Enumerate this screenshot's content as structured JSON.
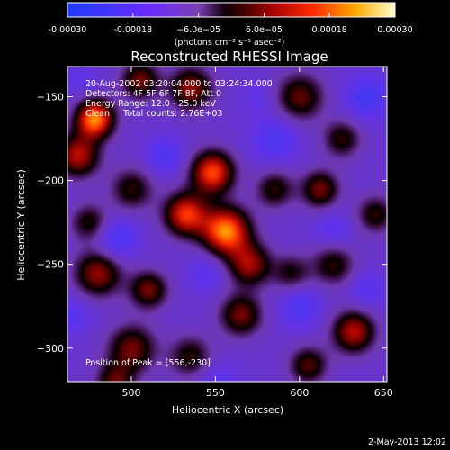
{
  "chart_data": {
    "type": "heatmap",
    "title": "Reconstructed RHESSI Image",
    "xlabel": "Heliocentric X (arcsec)",
    "ylabel": "Heliocentric Y (arcsec)",
    "xlim": [
      462,
      652
    ],
    "ylim": [
      -320,
      -132
    ],
    "xticks": [
      500,
      550,
      600,
      650
    ],
    "yticks": [
      -150,
      -200,
      -250,
      -300
    ],
    "colorbar": {
      "unit": "(photons cm⁻² s⁻¹ asec⁻²)",
      "range": [
        -0.0003,
        0.0003
      ],
      "tick_values": [
        -0.0003,
        -0.00018,
        -6e-05,
        6e-05,
        0.00018,
        0.0003
      ],
      "tick_labels": [
        "-0.00030",
        "-0.00018",
        "−6.0e−05",
        "6.0e−05",
        "0.00018",
        "0.00030"
      ]
    },
    "annotations": [
      "20-Aug-2002 03:20:04.000 to 03:24:34.000",
      "Detectors: 4F 5F 6F 7F 8F, Att 0",
      "Energy Range: 12.0 - 25.0 keV",
      "Clean     Total counts: 2.76E+03"
    ],
    "peak_label": "Position of Peak = [556,-230]",
    "peak": {
      "x": 556,
      "y": -230,
      "value": 0.0003
    },
    "sources": [
      {
        "x": 556,
        "y": -230,
        "value": 0.0003,
        "sigma": 10
      },
      {
        "x": 548,
        "y": -195,
        "value": 0.00026,
        "sigma": 9
      },
      {
        "x": 532,
        "y": -220,
        "value": 0.00024,
        "sigma": 9
      },
      {
        "x": 570,
        "y": -250,
        "value": 0.00018,
        "sigma": 9
      },
      {
        "x": 478,
        "y": -163,
        "value": 0.0003,
        "sigma": 8
      },
      {
        "x": 468,
        "y": -185,
        "value": 0.0002,
        "sigma": 9
      },
      {
        "x": 535,
        "y": -145,
        "value": 0.00018,
        "sigma": 9
      },
      {
        "x": 505,
        "y": -140,
        "value": 0.00016,
        "sigma": 8
      },
      {
        "x": 600,
        "y": -150,
        "value": 0.00015,
        "sigma": 10
      },
      {
        "x": 625,
        "y": -175,
        "value": 0.00012,
        "sigma": 8
      },
      {
        "x": 612,
        "y": -205,
        "value": 0.00016,
        "sigma": 8
      },
      {
        "x": 585,
        "y": -205,
        "value": 0.00012,
        "sigma": 8
      },
      {
        "x": 500,
        "y": -205,
        "value": 0.00012,
        "sigma": 9
      },
      {
        "x": 480,
        "y": -255,
        "value": 0.00018,
        "sigma": 10
      },
      {
        "x": 510,
        "y": -265,
        "value": 0.00016,
        "sigma": 8
      },
      {
        "x": 500,
        "y": -300,
        "value": 0.00016,
        "sigma": 10
      },
      {
        "x": 535,
        "y": -305,
        "value": 0.00012,
        "sigma": 9
      },
      {
        "x": 565,
        "y": -280,
        "value": 0.00016,
        "sigma": 9
      },
      {
        "x": 595,
        "y": -255,
        "value": 0.0001,
        "sigma": 8
      },
      {
        "x": 620,
        "y": -250,
        "value": 0.00012,
        "sigma": 9
      },
      {
        "x": 632,
        "y": -290,
        "value": 0.0002,
        "sigma": 9
      },
      {
        "x": 605,
        "y": -310,
        "value": 0.00014,
        "sigma": 8
      },
      {
        "x": 645,
        "y": -220,
        "value": 0.00012,
        "sigma": 8
      },
      {
        "x": 475,
        "y": -225,
        "value": 0.00012,
        "sigma": 8
      },
      {
        "x": 490,
        "y": -320,
        "value": 0.00014,
        "sigma": 8
      },
      {
        "x": 585,
        "y": -175,
        "value": -0.0001,
        "sigma": 10
      },
      {
        "x": 640,
        "y": -150,
        "value": -0.00012,
        "sigma": 9
      },
      {
        "x": 490,
        "y": -235,
        "value": -0.00012,
        "sigma": 9
      },
      {
        "x": 545,
        "y": -255,
        "value": -8e-05,
        "sigma": 8
      },
      {
        "x": 520,
        "y": -185,
        "value": -0.0001,
        "sigma": 8
      },
      {
        "x": 600,
        "y": -275,
        "value": -0.0001,
        "sigma": 9
      },
      {
        "x": 640,
        "y": -265,
        "value": -8e-05,
        "sigma": 8
      },
      {
        "x": 550,
        "y": -320,
        "value": -8e-05,
        "sigma": 9
      },
      {
        "x": 465,
        "y": -280,
        "value": -8e-05,
        "sigma": 8
      },
      {
        "x": 470,
        "y": -140,
        "value": -6e-05,
        "sigma": 7
      },
      {
        "x": 620,
        "y": -230,
        "value": -8e-05,
        "sigma": 8
      },
      {
        "x": 575,
        "y": -150,
        "value": -6e-05,
        "sigma": 7
      }
    ],
    "background": -0.00012,
    "grid": false
  },
  "footer": {
    "timestamp": "2-May-2013 12:02"
  }
}
